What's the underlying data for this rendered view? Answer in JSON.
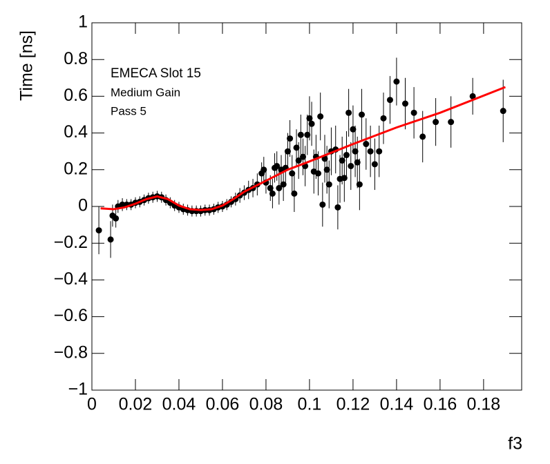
{
  "chart_data": {
    "type": "scatter",
    "xlabel": "f3",
    "ylabel": "Time [ns]",
    "annotations": [
      "EMECA Slot 15",
      "Medium Gain",
      "Pass 5"
    ],
    "xlim": [
      0,
      0.1975
    ],
    "ylim": [
      -1,
      1
    ],
    "xticks": [
      0,
      0.02,
      0.04,
      0.06,
      0.08,
      0.1,
      0.12,
      0.14,
      0.16,
      0.18
    ],
    "yticks": [
      {
        "value": -1,
        "label": "−1"
      },
      {
        "value": -0.8,
        "label": "−0.8"
      },
      {
        "value": -0.6,
        "label": "−0.6"
      },
      {
        "value": -0.4,
        "label": "−0.4"
      },
      {
        "value": -0.2,
        "label": "−0.2"
      },
      0,
      0.2,
      0.4,
      0.6,
      0.8,
      1
    ],
    "points": {
      "color": "#000000",
      "x": [
        0.0032,
        0.0086,
        0.0095,
        0.011,
        0.012,
        0.014,
        0.016,
        0.018,
        0.02,
        0.022,
        0.024,
        0.026,
        0.028,
        0.03,
        0.032,
        0.034,
        0.036,
        0.038,
        0.04,
        0.042,
        0.044,
        0.046,
        0.048,
        0.05,
        0.052,
        0.054,
        0.056,
        0.058,
        0.06,
        0.062,
        0.064,
        0.066,
        0.068,
        0.07,
        0.072,
        0.074,
        0.076,
        0.078,
        0.079,
        0.08,
        0.082,
        0.083,
        0.084,
        0.085,
        0.086,
        0.087,
        0.088,
        0.089,
        0.09,
        0.091,
        0.092,
        0.093,
        0.094,
        0.095,
        0.096,
        0.097,
        0.098,
        0.099,
        0.1,
        0.101,
        0.102,
        0.103,
        0.104,
        0.105,
        0.106,
        0.107,
        0.108,
        0.109,
        0.11,
        0.112,
        0.113,
        0.114,
        0.115,
        0.116,
        0.117,
        0.118,
        0.119,
        0.12,
        0.121,
        0.122,
        0.123,
        0.124,
        0.126,
        0.128,
        0.13,
        0.132,
        0.134,
        0.137,
        0.14,
        0.144,
        0.148,
        0.152,
        0.158,
        0.165,
        0.175,
        0.189
      ],
      "values": [
        -0.13,
        -0.18,
        -0.05,
        -0.065,
        0.0,
        0.01,
        0.01,
        0.01,
        0.02,
        0.025,
        0.035,
        0.045,
        0.05,
        0.055,
        0.05,
        0.035,
        0.02,
        0.005,
        -0.005,
        -0.015,
        -0.02,
        -0.025,
        -0.025,
        -0.025,
        -0.02,
        -0.02,
        -0.015,
        -0.005,
        0.0,
        0.01,
        0.025,
        0.04,
        0.06,
        0.075,
        0.09,
        0.1,
        0.12,
        0.18,
        0.2,
        0.13,
        0.1,
        0.07,
        0.21,
        0.22,
        0.1,
        0.2,
        0.12,
        0.21,
        0.3,
        0.37,
        0.18,
        0.07,
        0.32,
        0.25,
        0.39,
        0.27,
        0.22,
        0.39,
        0.48,
        0.45,
        0.19,
        0.27,
        0.18,
        0.49,
        0.01,
        0.26,
        0.2,
        0.12,
        0.3,
        0.31,
        -0.005,
        0.15,
        0.25,
        0.155,
        0.28,
        0.51,
        0.22,
        0.42,
        0.3,
        0.24,
        0.12,
        0.5,
        0.34,
        0.3,
        0.23,
        0.3,
        0.48,
        0.58,
        0.68,
        0.56,
        0.51,
        0.38,
        0.46,
        0.46,
        0.6,
        0.52
      ],
      "errors": [
        0.13,
        0.1,
        0.06,
        0.05,
        0.035,
        0.035,
        0.03,
        0.03,
        0.03,
        0.03,
        0.03,
        0.03,
        0.03,
        0.03,
        0.03,
        0.03,
        0.03,
        0.03,
        0.03,
        0.03,
        0.03,
        0.03,
        0.03,
        0.03,
        0.03,
        0.03,
        0.03,
        0.03,
        0.03,
        0.03,
        0.03,
        0.035,
        0.04,
        0.04,
        0.05,
        0.05,
        0.06,
        0.06,
        0.07,
        0.06,
        0.07,
        0.08,
        0.08,
        0.08,
        0.09,
        0.08,
        0.09,
        0.09,
        0.1,
        0.1,
        0.1,
        0.1,
        0.1,
        0.1,
        0.11,
        0.1,
        0.11,
        0.11,
        0.12,
        0.12,
        0.12,
        0.12,
        0.12,
        0.13,
        0.12,
        0.13,
        0.13,
        0.13,
        0.13,
        0.13,
        0.12,
        0.13,
        0.13,
        0.13,
        0.13,
        0.13,
        0.13,
        0.13,
        0.14,
        0.14,
        0.14,
        0.14,
        0.14,
        0.14,
        0.14,
        0.14,
        0.14,
        0.13,
        0.13,
        0.14,
        0.14,
        0.14,
        0.13,
        0.14,
        0.1,
        0.17
      ]
    },
    "fit": {
      "color": "#ff0000",
      "x": [
        0.004,
        0.01,
        0.015,
        0.02,
        0.025,
        0.03,
        0.035,
        0.04,
        0.045,
        0.05,
        0.055,
        0.06,
        0.065,
        0.07,
        0.075,
        0.08,
        0.09,
        0.1,
        0.12,
        0.14,
        0.16,
        0.19
      ],
      "values": [
        -0.01,
        -0.015,
        -0.005,
        0.015,
        0.04,
        0.055,
        0.04,
        0.005,
        -0.015,
        -0.02,
        -0.015,
        0.005,
        0.04,
        0.08,
        0.11,
        0.14,
        0.2,
        0.245,
        0.34,
        0.43,
        0.51,
        0.65
      ]
    }
  }
}
